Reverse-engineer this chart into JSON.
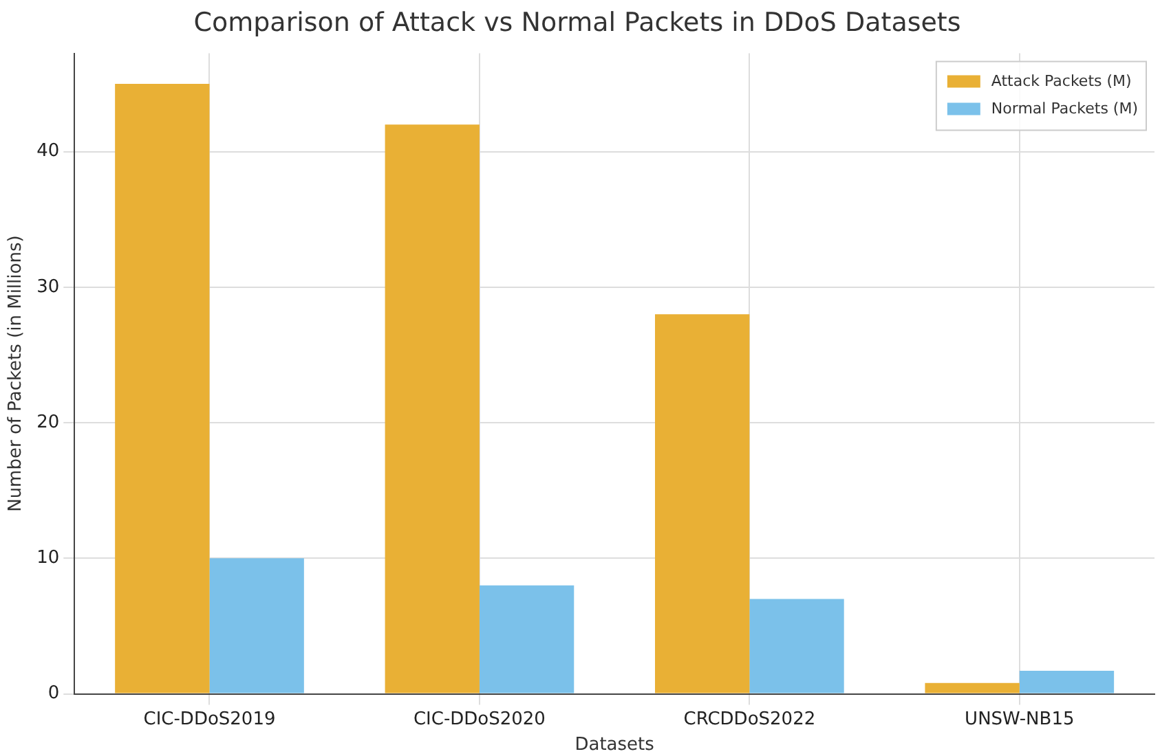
{
  "chart_data": {
    "type": "bar",
    "title": "Comparison of Attack vs Normal Packets in DDoS Datasets",
    "xlabel": "Datasets",
    "ylabel": "Number of Packets (in Millions)",
    "categories": [
      "CIC-DDoS2019",
      "CIC-DDoS2020",
      "CRCDDoS2022",
      "UNSW-NB15"
    ],
    "series": [
      {
        "name": "Attack Packets (M)",
        "color": "#e9b035",
        "values": [
          45,
          42,
          28,
          0.8
        ]
      },
      {
        "name": "Normal Packets (M)",
        "color": "#7bc1ea",
        "values": [
          10,
          8,
          7,
          1.7
        ]
      }
    ],
    "ylim": [
      0,
      47.25
    ],
    "yticks": [
      0,
      10,
      20,
      30,
      40
    ],
    "grid": true,
    "legend": "top right"
  }
}
